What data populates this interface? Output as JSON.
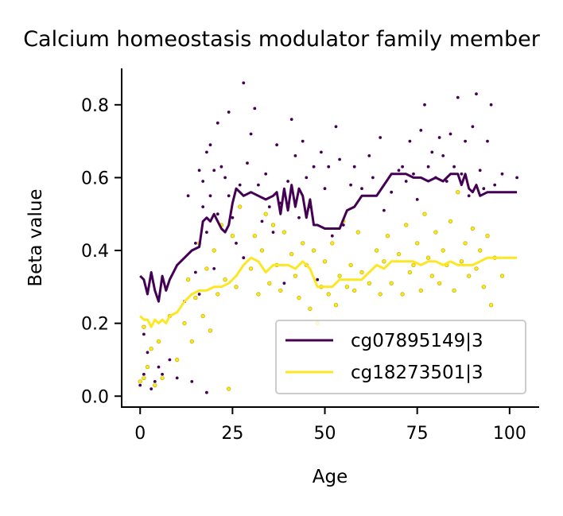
{
  "chart_data": {
    "type": "scatter",
    "title": "Calcium homeostasis modulator family member",
    "xlabel": "Age",
    "ylabel": "Beta value",
    "xlim": [
      -5,
      108
    ],
    "ylim": [
      -0.03,
      0.9
    ],
    "xticks": [
      0,
      25,
      50,
      75,
      100
    ],
    "yticks": [
      0.0,
      0.2,
      0.4,
      0.6,
      0.8
    ],
    "xtick_labels": [
      "0",
      "25",
      "50",
      "75",
      "100"
    ],
    "ytick_labels": [
      "0.0",
      "0.2",
      "0.4",
      "0.6",
      "0.8"
    ],
    "grid": false,
    "legend_position": "lower-right",
    "series": [
      {
        "name": "cg07895149|3",
        "color": "#440154",
        "trend": [
          [
            0,
            0.33
          ],
          [
            1,
            0.32
          ],
          [
            2,
            0.28
          ],
          [
            3,
            0.34
          ],
          [
            4,
            0.29
          ],
          [
            5,
            0.26
          ],
          [
            6,
            0.33
          ],
          [
            7,
            0.29
          ],
          [
            8,
            0.32
          ],
          [
            10,
            0.36
          ],
          [
            12,
            0.38
          ],
          [
            14,
            0.4
          ],
          [
            16,
            0.41
          ],
          [
            17,
            0.48
          ],
          [
            18,
            0.49
          ],
          [
            19,
            0.48
          ],
          [
            20,
            0.5
          ],
          [
            21,
            0.48
          ],
          [
            22,
            0.46
          ],
          [
            23,
            0.45
          ],
          [
            24,
            0.47
          ],
          [
            25,
            0.53
          ],
          [
            26,
            0.57
          ],
          [
            27,
            0.56
          ],
          [
            28,
            0.55
          ],
          [
            30,
            0.56
          ],
          [
            32,
            0.55
          ],
          [
            34,
            0.54
          ],
          [
            36,
            0.55
          ],
          [
            37,
            0.56
          ],
          [
            38,
            0.5
          ],
          [
            39,
            0.57
          ],
          [
            40,
            0.51
          ],
          [
            41,
            0.58
          ],
          [
            42,
            0.52
          ],
          [
            43,
            0.57
          ],
          [
            44,
            0.55
          ],
          [
            45,
            0.49
          ],
          [
            46,
            0.54
          ],
          [
            47,
            0.47
          ],
          [
            48,
            0.47
          ],
          [
            50,
            0.46
          ],
          [
            52,
            0.46
          ],
          [
            54,
            0.46
          ],
          [
            56,
            0.51
          ],
          [
            58,
            0.52
          ],
          [
            60,
            0.55
          ],
          [
            62,
            0.55
          ],
          [
            64,
            0.55
          ],
          [
            66,
            0.58
          ],
          [
            68,
            0.61
          ],
          [
            70,
            0.61
          ],
          [
            72,
            0.61
          ],
          [
            74,
            0.6
          ],
          [
            76,
            0.6
          ],
          [
            78,
            0.59
          ],
          [
            80,
            0.6
          ],
          [
            82,
            0.59
          ],
          [
            84,
            0.61
          ],
          [
            86,
            0.61
          ],
          [
            87,
            0.58
          ],
          [
            88,
            0.61
          ],
          [
            89,
            0.57
          ],
          [
            90,
            0.56
          ],
          [
            91,
            0.58
          ],
          [
            92,
            0.55
          ],
          [
            94,
            0.56
          ],
          [
            96,
            0.56
          ],
          [
            100,
            0.56
          ],
          [
            102,
            0.56
          ]
        ],
        "points": [
          [
            0,
            0.03
          ],
          [
            1,
            0.06
          ],
          [
            1,
            0.17
          ],
          [
            2,
            0.12
          ],
          [
            3,
            0.02
          ],
          [
            4,
            0.04
          ],
          [
            5,
            0.08
          ],
          [
            6,
            0.06
          ],
          [
            8,
            0.1
          ],
          [
            10,
            0.05
          ],
          [
            12,
            0.26
          ],
          [
            13,
            0.55
          ],
          [
            14,
            0.04
          ],
          [
            15,
            0.34
          ],
          [
            15,
            0.42
          ],
          [
            16,
            0.62
          ],
          [
            16,
            0.28
          ],
          [
            17,
            0.52
          ],
          [
            17,
            0.59
          ],
          [
            18,
            0.67
          ],
          [
            18,
            0.45
          ],
          [
            18,
            0.01
          ],
          [
            19,
            0.69
          ],
          [
            19,
            0.55
          ],
          [
            20,
            0.62
          ],
          [
            20,
            0.35
          ],
          [
            21,
            0.75
          ],
          [
            21,
            0.5
          ],
          [
            22,
            0.63
          ],
          [
            23,
            0.6
          ],
          [
            24,
            0.78
          ],
          [
            24,
            0.55
          ],
          [
            25,
            0.49
          ],
          [
            26,
            0.42
          ],
          [
            27,
            0.58
          ],
          [
            28,
            0.86
          ],
          [
            28,
            0.38
          ],
          [
            29,
            0.64
          ],
          [
            30,
            0.72
          ],
          [
            31,
            0.79
          ],
          [
            32,
            0.58
          ],
          [
            33,
            0.48
          ],
          [
            34,
            0.61
          ],
          [
            35,
            0.52
          ],
          [
            36,
            0.45
          ],
          [
            37,
            0.69
          ],
          [
            38,
            0.53
          ],
          [
            39,
            0.31
          ],
          [
            40,
            0.59
          ],
          [
            41,
            0.76
          ],
          [
            42,
            0.66
          ],
          [
            43,
            0.49
          ],
          [
            44,
            0.7
          ],
          [
            45,
            0.6
          ],
          [
            46,
            0.52
          ],
          [
            47,
            0.63
          ],
          [
            48,
            0.32
          ],
          [
            49,
            0.67
          ],
          [
            50,
            0.57
          ],
          [
            51,
            0.63
          ],
          [
            52,
            0.44
          ],
          [
            53,
            0.74
          ],
          [
            54,
            0.65
          ],
          [
            55,
            0.47
          ],
          [
            57,
            0.58
          ],
          [
            58,
            0.63
          ],
          [
            60,
            0.57
          ],
          [
            62,
            0.66
          ],
          [
            63,
            0.6
          ],
          [
            65,
            0.71
          ],
          [
            66,
            0.51
          ],
          [
            68,
            0.56
          ],
          [
            70,
            0.62
          ],
          [
            71,
            0.63
          ],
          [
            72,
            0.59
          ],
          [
            73,
            0.7
          ],
          [
            74,
            0.61
          ],
          [
            75,
            0.54
          ],
          [
            76,
            0.73
          ],
          [
            77,
            0.8
          ],
          [
            78,
            0.63
          ],
          [
            79,
            0.67
          ],
          [
            80,
            0.6
          ],
          [
            81,
            0.71
          ],
          [
            82,
            0.66
          ],
          [
            83,
            0.59
          ],
          [
            84,
            0.72
          ],
          [
            85,
            0.63
          ],
          [
            86,
            0.82
          ],
          [
            87,
            0.61
          ],
          [
            88,
            0.7
          ],
          [
            89,
            0.55
          ],
          [
            90,
            0.74
          ],
          [
            91,
            0.83
          ],
          [
            92,
            0.62
          ],
          [
            93,
            0.57
          ],
          [
            94,
            0.7
          ],
          [
            95,
            0.8
          ],
          [
            96,
            0.58
          ],
          [
            98,
            0.61
          ],
          [
            102,
            0.6
          ]
        ]
      },
      {
        "name": "cg18273501|3",
        "color": "#fde725",
        "trend": [
          [
            0,
            0.22
          ],
          [
            1,
            0.21
          ],
          [
            2,
            0.21
          ],
          [
            3,
            0.19
          ],
          [
            4,
            0.21
          ],
          [
            5,
            0.2
          ],
          [
            6,
            0.21
          ],
          [
            7,
            0.2
          ],
          [
            8,
            0.22
          ],
          [
            10,
            0.23
          ],
          [
            12,
            0.26
          ],
          [
            14,
            0.28
          ],
          [
            16,
            0.29
          ],
          [
            18,
            0.29
          ],
          [
            20,
            0.3
          ],
          [
            22,
            0.3
          ],
          [
            24,
            0.31
          ],
          [
            26,
            0.33
          ],
          [
            28,
            0.36
          ],
          [
            30,
            0.38
          ],
          [
            32,
            0.37
          ],
          [
            34,
            0.34
          ],
          [
            36,
            0.36
          ],
          [
            38,
            0.36
          ],
          [
            40,
            0.36
          ],
          [
            42,
            0.35
          ],
          [
            44,
            0.37
          ],
          [
            46,
            0.35
          ],
          [
            48,
            0.3
          ],
          [
            50,
            0.3
          ],
          [
            52,
            0.3
          ],
          [
            54,
            0.32
          ],
          [
            56,
            0.32
          ],
          [
            58,
            0.32
          ],
          [
            60,
            0.32
          ],
          [
            62,
            0.34
          ],
          [
            64,
            0.36
          ],
          [
            66,
            0.35
          ],
          [
            68,
            0.37
          ],
          [
            70,
            0.37
          ],
          [
            72,
            0.37
          ],
          [
            74,
            0.37
          ],
          [
            76,
            0.36
          ],
          [
            78,
            0.37
          ],
          [
            80,
            0.37
          ],
          [
            82,
            0.36
          ],
          [
            84,
            0.37
          ],
          [
            86,
            0.36
          ],
          [
            88,
            0.36
          ],
          [
            90,
            0.36
          ],
          [
            92,
            0.37
          ],
          [
            94,
            0.38
          ],
          [
            96,
            0.38
          ],
          [
            100,
            0.38
          ],
          [
            102,
            0.38
          ]
        ],
        "points": [
          [
            0,
            0.04
          ],
          [
            1,
            0.05
          ],
          [
            1,
            0.19
          ],
          [
            2,
            0.08
          ],
          [
            3,
            0.13
          ],
          [
            4,
            0.03
          ],
          [
            5,
            0.15
          ],
          [
            6,
            0.05
          ],
          [
            8,
            0.22
          ],
          [
            10,
            0.1
          ],
          [
            12,
            0.2
          ],
          [
            13,
            0.32
          ],
          [
            14,
            0.15
          ],
          [
            15,
            0.27
          ],
          [
            16,
            0.42
          ],
          [
            17,
            0.22
          ],
          [
            18,
            0.35
          ],
          [
            19,
            0.18
          ],
          [
            20,
            0.4
          ],
          [
            21,
            0.28
          ],
          [
            22,
            0.47
          ],
          [
            23,
            0.32
          ],
          [
            24,
            0.02
          ],
          [
            25,
            0.44
          ],
          [
            26,
            0.3
          ],
          [
            27,
            0.52
          ],
          [
            28,
            0.38
          ],
          [
            29,
            0.64
          ],
          [
            30,
            0.35
          ],
          [
            31,
            0.44
          ],
          [
            32,
            0.28
          ],
          [
            33,
            0.4
          ],
          [
            34,
            0.5
          ],
          [
            35,
            0.31
          ],
          [
            36,
            0.47
          ],
          [
            37,
            0.36
          ],
          [
            38,
            0.29
          ],
          [
            39,
            0.45
          ],
          [
            40,
            0.52
          ],
          [
            41,
            0.39
          ],
          [
            42,
            0.33
          ],
          [
            43,
            0.27
          ],
          [
            44,
            0.42
          ],
          [
            45,
            0.36
          ],
          [
            46,
            0.24
          ],
          [
            47,
            0.4
          ],
          [
            48,
            0.2
          ],
          [
            49,
            0.3
          ],
          [
            50,
            0.37
          ],
          [
            51,
            0.28
          ],
          [
            52,
            0.42
          ],
          [
            53,
            0.25
          ],
          [
            54,
            0.33
          ],
          [
            55,
            0.48
          ],
          [
            56,
            0.3
          ],
          [
            57,
            0.36
          ],
          [
            58,
            0.29
          ],
          [
            59,
            0.45
          ],
          [
            60,
            0.34
          ],
          [
            62,
            0.31
          ],
          [
            64,
            0.4
          ],
          [
            65,
            0.28
          ],
          [
            66,
            0.37
          ],
          [
            67,
            0.44
          ],
          [
            68,
            0.31
          ],
          [
            70,
            0.39
          ],
          [
            71,
            0.28
          ],
          [
            72,
            0.47
          ],
          [
            73,
            0.34
          ],
          [
            74,
            0.36
          ],
          [
            75,
            0.42
          ],
          [
            76,
            0.29
          ],
          [
            77,
            0.5
          ],
          [
            78,
            0.38
          ],
          [
            79,
            0.33
          ],
          [
            80,
            0.45
          ],
          [
            81,
            0.31
          ],
          [
            82,
            0.4
          ],
          [
            83,
            0.36
          ],
          [
            84,
            0.48
          ],
          [
            85,
            0.29
          ],
          [
            86,
            0.56
          ],
          [
            87,
            0.37
          ],
          [
            88,
            0.42
          ],
          [
            89,
            0.33
          ],
          [
            90,
            0.46
          ],
          [
            91,
            0.35
          ],
          [
            92,
            0.4
          ],
          [
            93,
            0.3
          ],
          [
            94,
            0.44
          ],
          [
            95,
            0.25
          ],
          [
            96,
            0.38
          ],
          [
            98,
            0.33
          ]
        ]
      }
    ]
  }
}
